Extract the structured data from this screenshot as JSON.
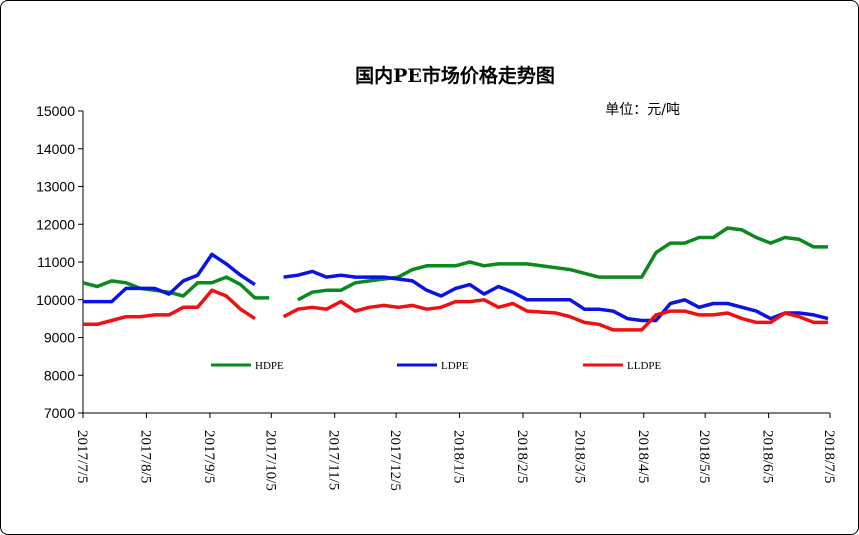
{
  "chart_data": {
    "type": "line",
    "title": "国内PE市场价格走势图",
    "unit_label": "单位：元/吨",
    "ylim": [
      7000,
      15000
    ],
    "yticks": [
      7000,
      8000,
      9000,
      10000,
      11000,
      12000,
      13000,
      14000,
      15000
    ],
    "xlim": [
      "2017/7/5",
      "2018/7/5"
    ],
    "xticks": [
      "2017/7/5",
      "2017/8/5",
      "2017/9/5",
      "2017/10/5",
      "2017/11/5",
      "2017/12/5",
      "2018/1/5",
      "2018/2/5",
      "2018/3/5",
      "2018/4/5",
      "2018/5/5",
      "2018/6/5",
      "2018/7/5"
    ],
    "grid": false,
    "legend_position": "bottom-inside",
    "series": [
      {
        "name": "HDPE",
        "color": "#0a8a1c",
        "points": [
          [
            "2017/7/5",
            10450
          ],
          [
            "2017/7/12",
            10350
          ],
          [
            "2017/7/19",
            10500
          ],
          [
            "2017/7/26",
            10450
          ],
          [
            "2017/8/2",
            10300
          ],
          [
            "2017/8/9",
            10250
          ],
          [
            "2017/8/16",
            10200
          ],
          [
            "2017/8/23",
            10100
          ],
          [
            "2017/8/30",
            10450
          ],
          [
            "2017/9/6",
            10450
          ],
          [
            "2017/9/13",
            10600
          ],
          [
            "2017/9/20",
            10400
          ],
          [
            "2017/9/27",
            10050
          ],
          [
            "2017/10/4",
            10050
          ],
          null,
          [
            "2017/10/18",
            10000
          ],
          [
            "2017/10/25",
            10200
          ],
          [
            "2017/11/1",
            10250
          ],
          [
            "2017/11/8",
            10250
          ],
          [
            "2017/11/15",
            10450
          ],
          [
            "2017/11/22",
            10500
          ],
          [
            "2017/11/29",
            10550
          ],
          [
            "2017/12/6",
            10600
          ],
          [
            "2017/12/13",
            10800
          ],
          [
            "2017/12/20",
            10900
          ],
          [
            "2017/12/27",
            10900
          ],
          [
            "2018/1/3",
            10900
          ],
          [
            "2018/1/10",
            11000
          ],
          [
            "2018/1/17",
            10900
          ],
          [
            "2018/1/24",
            10950
          ],
          [
            "2018/1/31",
            10950
          ],
          [
            "2018/2/7",
            10950
          ],
          [
            "2018/2/21",
            10850
          ],
          [
            "2018/2/28",
            10800
          ],
          [
            "2018/3/7",
            10700
          ],
          [
            "2018/3/14",
            10600
          ],
          [
            "2018/3/21",
            10600
          ],
          [
            "2018/3/28",
            10600
          ],
          [
            "2018/4/4",
            10600
          ],
          [
            "2018/4/11",
            11250
          ],
          [
            "2018/4/18",
            11500
          ],
          [
            "2018/4/25",
            11500
          ],
          [
            "2018/5/2",
            11650
          ],
          [
            "2018/5/9",
            11650
          ],
          [
            "2018/5/16",
            11900
          ],
          [
            "2018/5/23",
            11850
          ],
          [
            "2018/5/30",
            11650
          ],
          [
            "2018/6/6",
            11500
          ],
          [
            "2018/6/13",
            11650
          ],
          [
            "2018/6/20",
            11600
          ],
          [
            "2018/6/27",
            11400
          ],
          [
            "2018/7/4",
            11400
          ]
        ]
      },
      {
        "name": "LDPE",
        "color": "#0a12e6",
        "points": [
          [
            "2017/7/5",
            9950
          ],
          [
            "2017/7/12",
            9950
          ],
          [
            "2017/7/19",
            9950
          ],
          [
            "2017/7/26",
            10300
          ],
          [
            "2017/8/2",
            10300
          ],
          [
            "2017/8/9",
            10300
          ],
          [
            "2017/8/16",
            10150
          ],
          [
            "2017/8/23",
            10500
          ],
          [
            "2017/8/30",
            10650
          ],
          [
            "2017/9/6",
            11200
          ],
          [
            "2017/9/13",
            10950
          ],
          [
            "2017/9/20",
            10650
          ],
          [
            "2017/9/27",
            10400
          ],
          null,
          [
            "2017/10/11",
            10600
          ],
          [
            "2017/10/18",
            10650
          ],
          [
            "2017/10/25",
            10750
          ],
          [
            "2017/11/1",
            10600
          ],
          [
            "2017/11/8",
            10650
          ],
          [
            "2017/11/15",
            10600
          ],
          [
            "2017/11/22",
            10600
          ],
          [
            "2017/11/29",
            10600
          ],
          [
            "2017/12/6",
            10550
          ],
          [
            "2017/12/13",
            10500
          ],
          [
            "2017/12/20",
            10250
          ],
          [
            "2017/12/27",
            10100
          ],
          [
            "2018/1/3",
            10300
          ],
          [
            "2018/1/10",
            10400
          ],
          [
            "2018/1/17",
            10150
          ],
          [
            "2018/1/24",
            10350
          ],
          [
            "2018/1/31",
            10200
          ],
          [
            "2018/2/7",
            10000
          ],
          [
            "2018/2/21",
            10000
          ],
          [
            "2018/2/28",
            10000
          ],
          [
            "2018/3/7",
            9750
          ],
          [
            "2018/3/14",
            9750
          ],
          [
            "2018/3/21",
            9700
          ],
          [
            "2018/3/28",
            9500
          ],
          [
            "2018/4/4",
            9450
          ],
          [
            "2018/4/11",
            9450
          ],
          [
            "2018/4/18",
            9900
          ],
          [
            "2018/4/25",
            10000
          ],
          [
            "2018/5/2",
            9800
          ],
          [
            "2018/5/9",
            9900
          ],
          [
            "2018/5/16",
            9900
          ],
          [
            "2018/5/23",
            9800
          ],
          [
            "2018/5/30",
            9700
          ],
          [
            "2018/6/6",
            9500
          ],
          [
            "2018/6/13",
            9650
          ],
          [
            "2018/6/20",
            9650
          ],
          [
            "2018/6/27",
            9600
          ],
          [
            "2018/7/4",
            9500
          ]
        ]
      },
      {
        "name": "LLDPE",
        "color": "#f01010",
        "points": [
          [
            "2017/7/5",
            9350
          ],
          [
            "2017/7/12",
            9350
          ],
          [
            "2017/7/19",
            9450
          ],
          [
            "2017/7/26",
            9550
          ],
          [
            "2017/8/2",
            9550
          ],
          [
            "2017/8/9",
            9600
          ],
          [
            "2017/8/16",
            9600
          ],
          [
            "2017/8/23",
            9800
          ],
          [
            "2017/8/30",
            9800
          ],
          [
            "2017/9/6",
            10250
          ],
          [
            "2017/9/13",
            10100
          ],
          [
            "2017/9/20",
            9750
          ],
          [
            "2017/9/27",
            9500
          ],
          null,
          [
            "2017/10/11",
            9550
          ],
          [
            "2017/10/18",
            9750
          ],
          [
            "2017/10/25",
            9800
          ],
          [
            "2017/11/1",
            9750
          ],
          [
            "2017/11/8",
            9950
          ],
          [
            "2017/11/15",
            9700
          ],
          [
            "2017/11/22",
            9800
          ],
          [
            "2017/11/29",
            9850
          ],
          [
            "2017/12/6",
            9800
          ],
          [
            "2017/12/13",
            9850
          ],
          [
            "2017/12/20",
            9750
          ],
          [
            "2017/12/27",
            9800
          ],
          [
            "2018/1/3",
            9950
          ],
          [
            "2018/1/10",
            9950
          ],
          [
            "2018/1/17",
            10000
          ],
          [
            "2018/1/24",
            9800
          ],
          [
            "2018/1/31",
            9900
          ],
          [
            "2018/2/7",
            9700
          ],
          [
            "2018/2/21",
            9650
          ],
          [
            "2018/2/28",
            9550
          ],
          [
            "2018/3/7",
            9400
          ],
          [
            "2018/3/14",
            9350
          ],
          [
            "2018/3/21",
            9200
          ],
          [
            "2018/3/28",
            9200
          ],
          [
            "2018/4/4",
            9200
          ],
          [
            "2018/4/11",
            9600
          ],
          [
            "2018/4/18",
            9700
          ],
          [
            "2018/4/25",
            9700
          ],
          [
            "2018/5/2",
            9600
          ],
          [
            "2018/5/9",
            9600
          ],
          [
            "2018/5/16",
            9650
          ],
          [
            "2018/5/23",
            9500
          ],
          [
            "2018/5/30",
            9400
          ],
          [
            "2018/6/6",
            9400
          ],
          [
            "2018/6/13",
            9650
          ],
          [
            "2018/6/20",
            9550
          ],
          [
            "2018/6/27",
            9400
          ],
          [
            "2018/7/4",
            9400
          ]
        ]
      }
    ]
  }
}
